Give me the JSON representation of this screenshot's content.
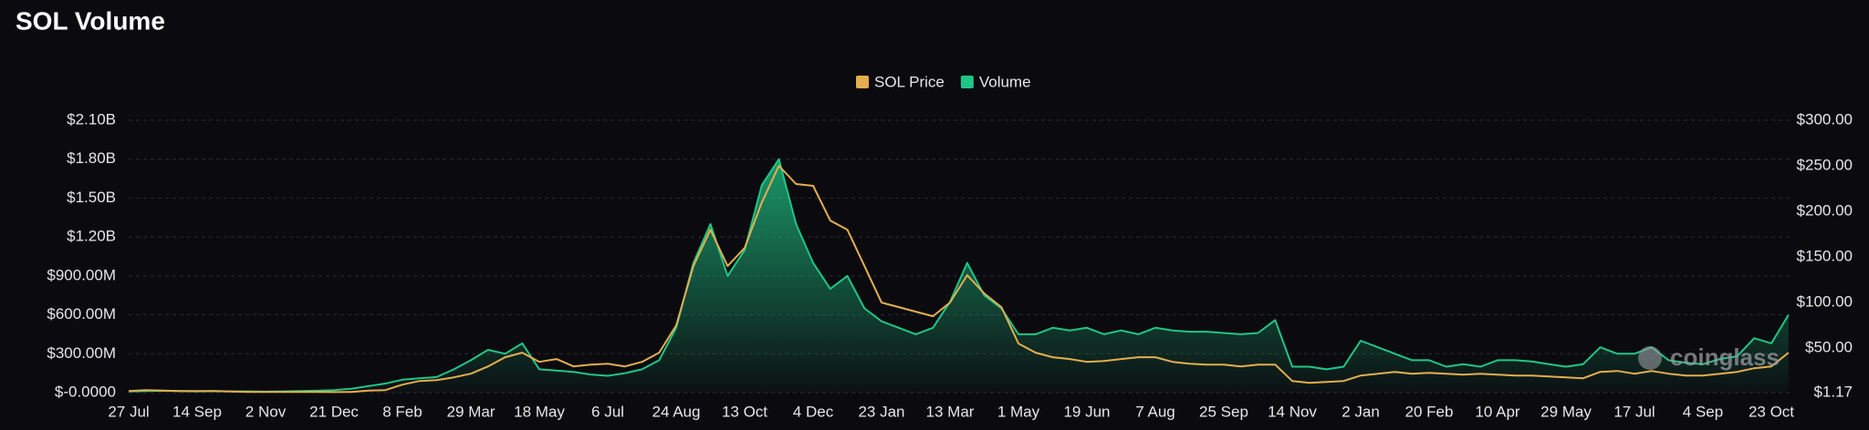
{
  "chart_data": {
    "type": "line",
    "title": "SOL Volume",
    "watermark": "coinglass",
    "categories": [
      "27 Jul",
      null,
      null,
      null,
      "14 Sep",
      null,
      null,
      null,
      "2 Nov",
      null,
      null,
      null,
      "21 Dec",
      null,
      null,
      null,
      "8 Feb",
      null,
      null,
      null,
      "29 Mar",
      null,
      null,
      null,
      "18 May",
      null,
      null,
      null,
      "6 Jul",
      null,
      null,
      null,
      "24 Aug",
      null,
      null,
      null,
      "13 Oct",
      null,
      null,
      null,
      "4 Dec",
      null,
      null,
      null,
      "23 Jan",
      null,
      null,
      null,
      "13 Mar",
      null,
      null,
      null,
      "1 May",
      null,
      null,
      null,
      "19 Jun",
      null,
      null,
      null,
      "7 Aug",
      null,
      null,
      null,
      "25 Sep",
      null,
      null,
      null,
      "14 Nov",
      null,
      null,
      null,
      "2 Jan",
      null,
      null,
      null,
      "20 Feb",
      null,
      null,
      null,
      "10 Apr",
      null,
      null,
      null,
      "29 May",
      null,
      null,
      null,
      "17 Jul",
      null,
      null,
      null,
      "4 Sep",
      null,
      null,
      null,
      "23 Oct",
      null
    ],
    "series": [
      {
        "name": "SOL Price",
        "color": "#e3ae4f",
        "axis": "y2",
        "values": [
          3,
          4,
          3.5,
          3,
          3,
          3,
          2.5,
          2,
          2,
          2,
          2,
          2,
          1.8,
          2,
          3.5,
          4,
          10,
          14,
          15,
          18,
          22,
          30,
          40,
          45,
          35,
          38,
          30,
          32,
          33,
          30,
          35,
          45,
          75,
          140,
          180,
          140,
          160,
          210,
          250,
          230,
          228,
          190,
          180,
          140,
          100,
          95,
          90,
          85,
          100,
          130,
          110,
          95,
          55,
          45,
          40,
          38,
          35,
          36,
          38,
          40,
          40,
          35,
          33,
          32,
          32,
          30,
          32,
          32,
          14,
          12,
          13,
          14,
          20,
          22,
          24,
          22,
          23,
          22,
          21,
          22,
          21,
          20,
          20,
          19,
          18,
          17,
          24,
          25,
          22,
          25,
          22,
          20,
          20,
          22,
          24,
          28,
          30,
          45
        ]
      },
      {
        "name": "Volume",
        "color": "#1fc687",
        "values": [
          10,
          12,
          15,
          12,
          10,
          12,
          10,
          10,
          8,
          10,
          12,
          15,
          20,
          30,
          50,
          70,
          100,
          110,
          120,
          180,
          250,
          330,
          300,
          380,
          180,
          170,
          160,
          140,
          130,
          150,
          180,
          250,
          500,
          1000,
          1300,
          900,
          1100,
          1600,
          1800,
          1300,
          1000,
          800,
          900,
          650,
          550,
          500,
          450,
          500,
          700,
          1000,
          750,
          650,
          450,
          450,
          500,
          480,
          500,
          450,
          480,
          450,
          500,
          480,
          470,
          470,
          460,
          450,
          460,
          560,
          200,
          200,
          180,
          200,
          400,
          350,
          300,
          250,
          250,
          200,
          220,
          200,
          250,
          250,
          240,
          220,
          200,
          220,
          350,
          300,
          300,
          350,
          250,
          230,
          220,
          260,
          280,
          420,
          380,
          600
        ]
      }
    ],
    "ylim": [
      0,
      2100
    ],
    "yticks": [
      {
        "value": 0,
        "label": "$-0.0000"
      },
      {
        "value": 300,
        "label": "$300.00M"
      },
      {
        "value": 600,
        "label": "$600.00M"
      },
      {
        "value": 900,
        "label": "$900.00M"
      },
      {
        "value": 1200,
        "label": "$1.20B"
      },
      {
        "value": 1500,
        "label": "$1.50B"
      },
      {
        "value": 1800,
        "label": "$1.80B"
      },
      {
        "value": 2100,
        "label": "$2.10B"
      }
    ],
    "y2lim": [
      1.17,
      300
    ],
    "y2ticks": [
      {
        "value": 1.17,
        "label": "$1.17"
      },
      {
        "value": 50,
        "label": "$50.00"
      },
      {
        "value": 100,
        "label": "$100.00"
      },
      {
        "value": 150,
        "label": "$150.00"
      },
      {
        "value": 200,
        "label": "$200.00"
      },
      {
        "value": 250,
        "label": "$250.00"
      },
      {
        "value": 300,
        "label": "$300.00"
      }
    ],
    "grid": true
  }
}
